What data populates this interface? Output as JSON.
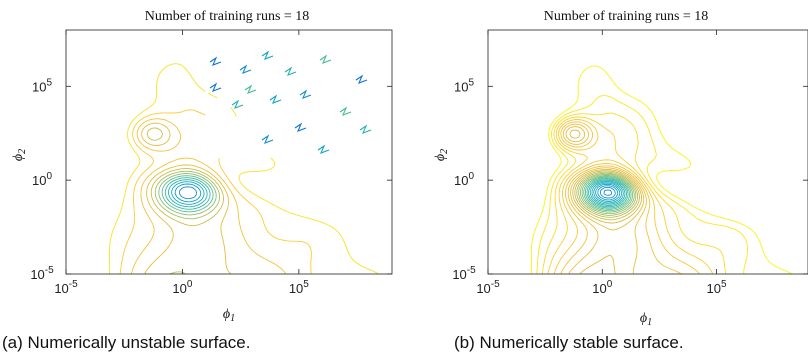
{
  "panels": [
    {
      "id": "a",
      "title": "Number of training runs = 18",
      "caption": "(a) Numerically unstable surface.",
      "xlabel": "φ1",
      "ylabel": "φ2",
      "xticks": [
        "10^-5",
        "10^0",
        "10^5"
      ],
      "yticks": [
        "10^-5",
        "10^0",
        "10^5"
      ]
    },
    {
      "id": "b",
      "title": "Number of training runs = 18",
      "caption": "(b) Numerically stable surface.",
      "xlabel": "φ1",
      "ylabel": "φ2",
      "xticks": [
        "10^-5",
        "10^0",
        "10^5"
      ],
      "yticks": [
        "10^-5",
        "10^0",
        "10^5"
      ]
    }
  ],
  "chart_data": [
    {
      "type": "contour",
      "title": "Number of training runs = 18",
      "xlabel": "φ1",
      "ylabel": "φ2",
      "xscale": "log",
      "yscale": "log",
      "xlim": [
        1e-05,
        1000000000.0
      ],
      "ylim": [
        1e-05,
        100000000.0
      ],
      "colormap": "parula",
      "grid": false
    },
    {
      "type": "contour",
      "title": "Number of training runs = 18",
      "xlabel": "φ1",
      "ylabel": "φ2",
      "xscale": "log",
      "yscale": "log",
      "xlim": [
        1e-05,
        1000000000.0
      ],
      "ylim": [
        1e-05,
        100000000.0
      ],
      "colormap": "parula",
      "grid": false
    }
  ]
}
